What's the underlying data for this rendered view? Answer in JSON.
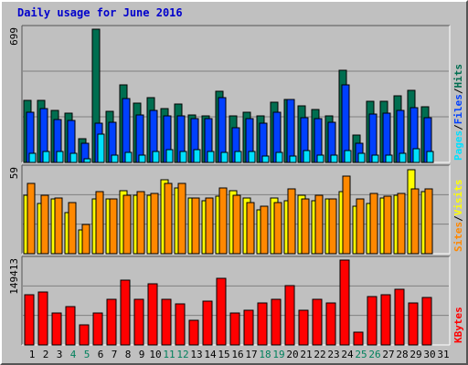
{
  "title": "Daily usage for June 2016",
  "colors": {
    "title": "#0000cc",
    "hits": "#006e50",
    "files": "#0040ff",
    "pages": "#00e0ff",
    "visits": "#ffff00",
    "sites": "#ff8800",
    "kbytes": "#ff0000",
    "weekend_label": "#00805c",
    "weekday_label": "#000000",
    "panel_bg": "#c0c0c0",
    "gridline": "#808080"
  },
  "chart_data": [
    {
      "type": "bar",
      "panel": "hits-files-pages",
      "title": "Daily usage for June 2016",
      "ymax_label": "699",
      "ylim": [
        0,
        699
      ],
      "side_label_parts": [
        "Pages",
        "Files",
        "Hits"
      ],
      "side_label_separator": "/",
      "categories": [
        "1",
        "2",
        "3",
        "4",
        "5",
        "6",
        "7",
        "8",
        "9",
        "10",
        "11",
        "12",
        "13",
        "14",
        "15",
        "16",
        "17",
        "18",
        "19",
        "20",
        "21",
        "22",
        "23",
        "24",
        "25",
        "26",
        "27",
        "28",
        "29",
        "30",
        "31"
      ],
      "weekend_days": [
        "4",
        "5",
        "11",
        "12",
        "18",
        "19",
        "25",
        "26"
      ],
      "series": [
        {
          "name": "Hits",
          "values": [
            320,
            320,
            270,
            255,
            125,
            690,
            265,
            400,
            305,
            335,
            280,
            300,
            245,
            240,
            370,
            240,
            260,
            240,
            310,
            325,
            295,
            275,
            240,
            475,
            140,
            315,
            315,
            345,
            375,
            290,
            0
          ]
        },
        {
          "name": "Files",
          "values": [
            262,
            280,
            220,
            215,
            100,
            205,
            210,
            330,
            245,
            270,
            240,
            240,
            225,
            225,
            335,
            180,
            225,
            205,
            260,
            325,
            230,
            225,
            210,
            400,
            100,
            250,
            255,
            270,
            285,
            230,
            0
          ]
        },
        {
          "name": "Pages",
          "values": [
            45,
            55,
            55,
            45,
            20,
            145,
            40,
            50,
            40,
            55,
            65,
            55,
            65,
            55,
            50,
            55,
            55,
            35,
            50,
            35,
            60,
            40,
            40,
            60,
            45,
            40,
            40,
            45,
            70,
            55,
            0
          ]
        }
      ]
    },
    {
      "type": "bar",
      "panel": "visits-sites",
      "ymax_label": "59",
      "ylim": [
        0,
        59
      ],
      "side_label_parts": [
        "Sites",
        "Visits"
      ],
      "side_label_separator": "/",
      "categories": [
        "1",
        "2",
        "3",
        "4",
        "5",
        "6",
        "7",
        "8",
        "9",
        "10",
        "11",
        "12",
        "13",
        "14",
        "15",
        "16",
        "17",
        "18",
        "19",
        "20",
        "21",
        "22",
        "23",
        "24",
        "25",
        "26",
        "27",
        "28",
        "29",
        "30",
        "31"
      ],
      "series": [
        {
          "name": "Visits",
          "values": [
            40,
            34,
            37,
            28,
            16,
            37,
            37,
            43,
            40,
            40,
            50,
            45,
            38,
            36,
            39,
            43,
            38,
            30,
            38,
            36,
            40,
            36,
            37,
            42,
            32,
            34,
            38,
            40,
            57,
            42,
            0
          ]
        },
        {
          "name": "Sites",
          "values": [
            48,
            40,
            38,
            35,
            20,
            42,
            37,
            40,
            42,
            41,
            48,
            48,
            38,
            38,
            45,
            40,
            35,
            32,
            35,
            44,
            37,
            40,
            37,
            53,
            37,
            41,
            39,
            41,
            44,
            44,
            0
          ]
        }
      ]
    },
    {
      "type": "bar",
      "panel": "kbytes",
      "ymax_label": "149413",
      "ylim": [
        0,
        149413
      ],
      "side_label_parts": [
        "KBytes"
      ],
      "side_label_separator": "",
      "categories": [
        "1",
        "2",
        "3",
        "4",
        "5",
        "6",
        "7",
        "8",
        "9",
        "10",
        "11",
        "12",
        "13",
        "14",
        "15",
        "16",
        "17",
        "18",
        "19",
        "20",
        "21",
        "22",
        "23",
        "24",
        "25",
        "26",
        "27",
        "28",
        "29",
        "30",
        "31"
      ],
      "series": [
        {
          "name": "KBytes",
          "values": [
            86000,
            92000,
            55000,
            66000,
            34000,
            55000,
            78000,
            112000,
            78000,
            106000,
            78000,
            70000,
            42000,
            75000,
            115000,
            55000,
            60000,
            72000,
            79000,
            103000,
            60000,
            78000,
            72000,
            146000,
            22000,
            84000,
            87000,
            96000,
            73000,
            82000,
            0
          ]
        }
      ]
    }
  ]
}
